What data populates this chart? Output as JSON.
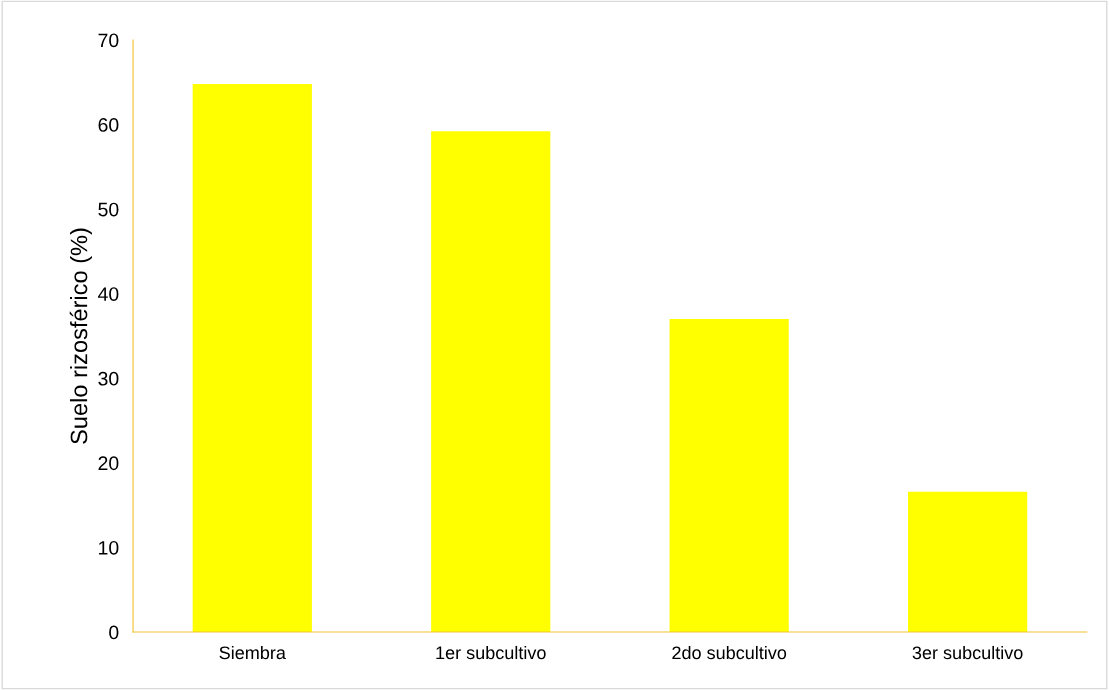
{
  "chart_data": {
    "type": "bar",
    "ylabel": "Suelo rizosférico (%)",
    "categories": [
      "Siembra",
      "1er subcultivo",
      "2do subcultivo",
      "3er subcultivo"
    ],
    "values": [
      64.8,
      59.2,
      37.0,
      16.6
    ],
    "color": "#ffff00",
    "ylim": [
      0,
      70
    ],
    "yticks": [
      0,
      10,
      20,
      30,
      40,
      50,
      60,
      70
    ],
    "grid": false,
    "legend": false
  }
}
